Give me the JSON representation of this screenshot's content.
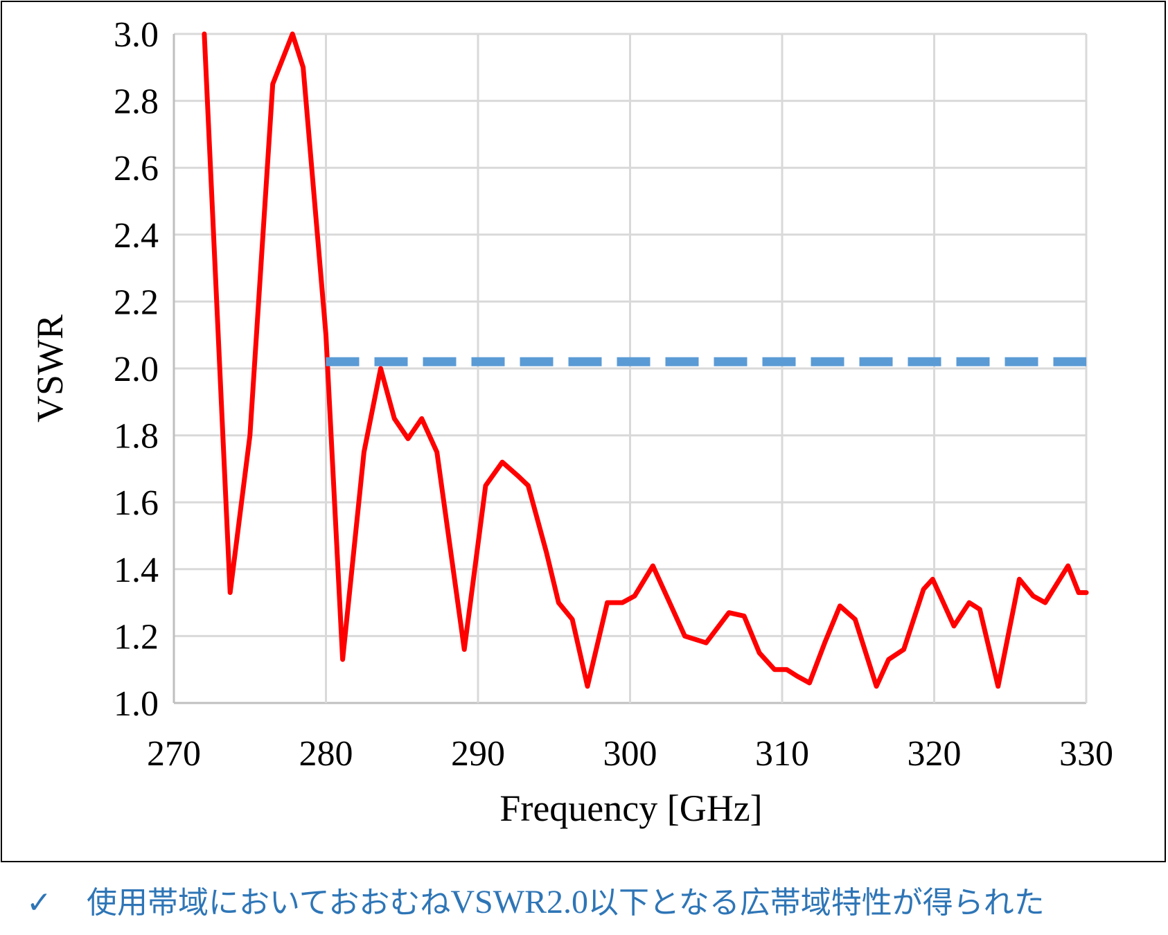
{
  "chart_data": {
    "type": "line",
    "xlabel": "Frequency [GHz]",
    "ylabel": "VSWR",
    "xlim": [
      270,
      330
    ],
    "xticks": [
      270,
      280,
      290,
      300,
      310,
      320,
      330
    ],
    "ylim": [
      1.0,
      3.0
    ],
    "yticks": [
      {
        "value": 1.0,
        "label": "1.0"
      },
      {
        "value": 1.2,
        "label": "1.2"
      },
      {
        "value": 1.4,
        "label": "1.4"
      },
      {
        "value": 1.6,
        "label": "1.6"
      },
      {
        "value": 1.8,
        "label": "1.8"
      },
      {
        "value": 2.0,
        "label": "2.0"
      },
      {
        "value": 2.2,
        "label": "2.2"
      },
      {
        "value": 2.4,
        "label": "2.4"
      },
      {
        "value": 2.6,
        "label": "2.6"
      },
      {
        "value": 2.8,
        "label": "2.8"
      },
      {
        "value": 3.0,
        "label": "3.0"
      }
    ],
    "grid": true,
    "series": [
      {
        "color": "#ff0000",
        "dashed": false,
        "x": [
          272.0,
          273.7,
          275.0,
          276.5,
          277.8,
          278.5,
          280.0,
          281.1,
          282.5,
          283.6,
          284.5,
          285.4,
          286.3,
          287.3,
          289.1,
          290.5,
          291.6,
          292.6,
          293.3,
          294.5,
          295.3,
          296.2,
          297.2,
          298.5,
          299.5,
          300.3,
          301.5,
          302.6,
          303.6,
          305.0,
          306.5,
          307.5,
          308.5,
          309.5,
          310.3,
          311.0,
          311.8,
          312.8,
          313.8,
          314.8,
          316.2,
          317.0,
          318.0,
          319.3,
          319.9,
          320.6,
          321.3,
          322.3,
          323.0,
          324.2,
          325.6,
          326.5,
          327.3,
          328.8,
          329.5,
          330.0
        ],
        "values": [
          3.0,
          1.33,
          1.8,
          2.85,
          3.0,
          2.9,
          2.1,
          1.13,
          1.75,
          2.0,
          1.85,
          1.79,
          1.85,
          1.75,
          1.16,
          1.65,
          1.72,
          1.68,
          1.65,
          1.45,
          1.3,
          1.25,
          1.05,
          1.3,
          1.3,
          1.32,
          1.41,
          1.3,
          1.2,
          1.18,
          1.27,
          1.26,
          1.15,
          1.1,
          1.1,
          1.08,
          1.06,
          1.18,
          1.29,
          1.25,
          1.05,
          1.13,
          1.16,
          1.34,
          1.37,
          1.3,
          1.23,
          1.3,
          1.28,
          1.05,
          1.37,
          1.32,
          1.3,
          1.41,
          1.33,
          1.33
        ]
      },
      {
        "color": "#5b9bd5",
        "dashed": true,
        "x": [
          280,
          330
        ],
        "values": [
          2.02,
          2.02
        ]
      }
    ]
  },
  "caption": {
    "mark": "✓",
    "text": [
      "使用帯域においておおむね",
      "VSWR2.0",
      "以下となる広帯域特性が得られた"
    ]
  }
}
